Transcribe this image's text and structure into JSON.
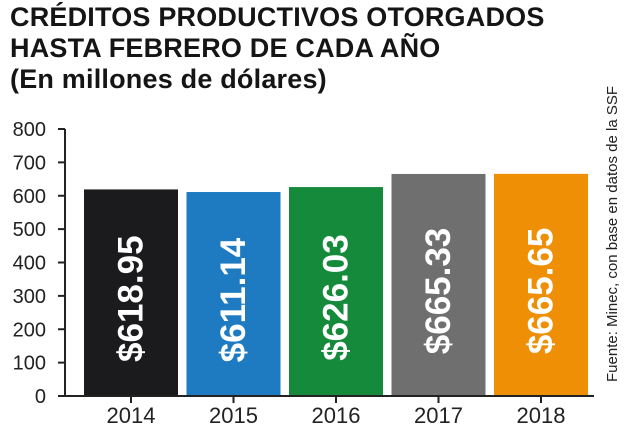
{
  "title_lines": [
    "CRÉDITOS PRODUCTIVOS OTORGADOS",
    "HASTA FEBRERO DE CADA AÑO",
    "(En millones de dólares)"
  ],
  "source": "Fuente: Minec, con base en datos de la SSF",
  "chart_data": {
    "type": "bar",
    "categories": [
      "2014",
      "2015",
      "2016",
      "2017",
      "2018"
    ],
    "values": [
      618.95,
      611.14,
      626.03,
      665.33,
      665.65
    ],
    "data_labels": [
      "$618.95",
      "$611.14",
      "$626.03",
      "$665.33",
      "$665.65"
    ],
    "ylim": [
      0,
      800
    ],
    "yticks": [
      0,
      100,
      200,
      300,
      400,
      500,
      600,
      700,
      800
    ],
    "bar_colors": [
      "#1b1b1d",
      "#1f7bc1",
      "#148a3a",
      "#6f6f6f",
      "#ee8f05"
    ],
    "grid": false,
    "legend": "none"
  }
}
